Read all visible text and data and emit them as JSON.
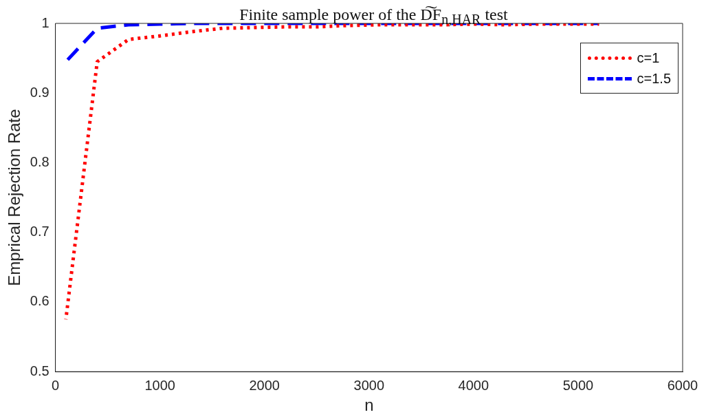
{
  "chart_data": {
    "type": "line",
    "title": "Finite sample power of the D͠F$_{n,HAR}$ test",
    "xlabel": "n",
    "ylabel": "Emprical Rejection Rate",
    "x": [
      100,
      400,
      700,
      1000,
      1300,
      1600,
      1900,
      2200,
      2500,
      2800,
      3100,
      3400,
      3700,
      4000,
      4300,
      4600,
      4900,
      5200
    ],
    "series": [
      {
        "name": "c=1",
        "color": "#ff0000",
        "line_style": "dotted",
        "values": [
          0.575,
          0.945,
          0.977,
          0.982,
          0.988,
          0.993,
          0.994,
          0.995,
          0.995,
          0.997,
          0.998,
          0.998,
          0.998,
          0.999,
          0.998,
          0.999,
          0.999,
          0.999
        ]
      },
      {
        "name": "c=1.5",
        "color": "#0000ff",
        "line_style": "dashed",
        "values": [
          0.945,
          0.993,
          0.998,
          0.999,
          1,
          1,
          1,
          1,
          1,
          1,
          1,
          1,
          1,
          1,
          1,
          1,
          1,
          1
        ]
      }
    ],
    "xlim": [
      0,
      6000
    ],
    "xticks": [
      0,
      1000,
      2000,
      3000,
      4000,
      5000,
      6000
    ],
    "ylim": [
      0.5,
      1
    ],
    "yticks": [
      0.5,
      0.6,
      0.7,
      0.8,
      0.9,
      1
    ],
    "grid": false,
    "legend": "top right",
    "marker": "none"
  }
}
